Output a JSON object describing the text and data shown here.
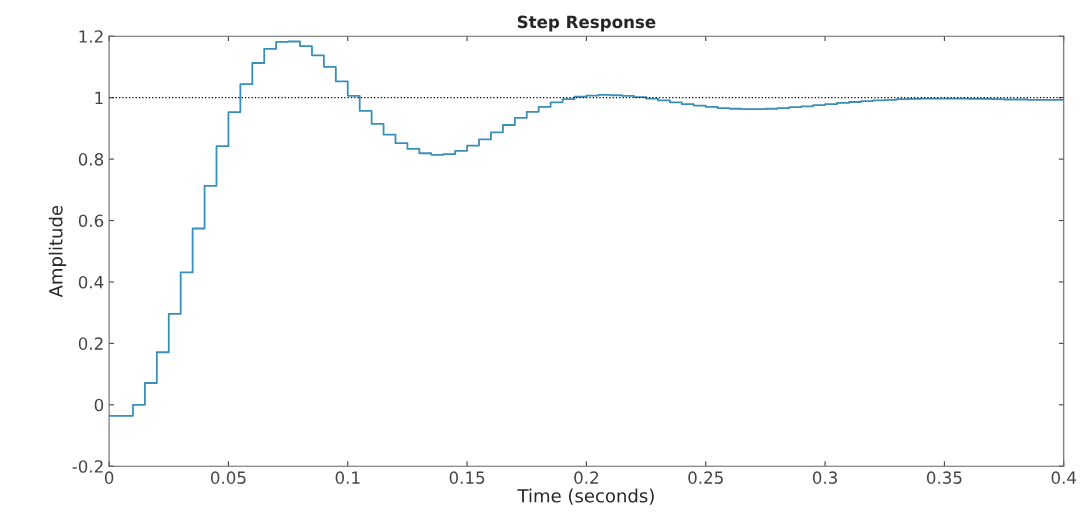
{
  "chart_data": {
    "type": "step",
    "title": "Step Response",
    "xlabel": "Time (seconds)",
    "ylabel": "Amplitude",
    "x": [
      0,
      0.01,
      0.015,
      0.02,
      0.025,
      0.03,
      0.035,
      0.04,
      0.045,
      0.05,
      0.055,
      0.06,
      0.065,
      0.07,
      0.075,
      0.08,
      0.085,
      0.09,
      0.095,
      0.1,
      0.105,
      0.11,
      0.115,
      0.12,
      0.125,
      0.13,
      0.135,
      0.14,
      0.145,
      0.15,
      0.155,
      0.16,
      0.165,
      0.17,
      0.175,
      0.18,
      0.185,
      0.19,
      0.195,
      0.2,
      0.205,
      0.21,
      0.215,
      0.22,
      0.225,
      0.23,
      0.235,
      0.24,
      0.245,
      0.25,
      0.255,
      0.26,
      0.265,
      0.27,
      0.275,
      0.28,
      0.285,
      0.29,
      0.295,
      0.3,
      0.305,
      0.31,
      0.315,
      0.32,
      0.325,
      0.33,
      0.335,
      0.34,
      0.345,
      0.35,
      0.355,
      0.36,
      0.365,
      0.37,
      0.375,
      0.38,
      0.385,
      0.39,
      0.395,
      0.4
    ],
    "series": [
      {
        "color": "#3a8fb7",
        "values": [
          -0.036,
          0.0,
          0.071,
          0.171,
          0.296,
          0.431,
          0.574,
          0.713,
          0.842,
          0.953,
          1.044,
          1.113,
          1.159,
          1.182,
          1.183,
          1.168,
          1.138,
          1.1,
          1.053,
          1.006,
          0.957,
          0.915,
          0.88,
          0.852,
          0.833,
          0.819,
          0.814,
          0.816,
          0.827,
          0.844,
          0.864,
          0.887,
          0.911,
          0.934,
          0.954,
          0.97,
          0.985,
          0.995,
          1.003,
          1.007,
          1.009,
          1.008,
          1.006,
          1.002,
          0.997,
          0.991,
          0.985,
          0.979,
          0.974,
          0.97,
          0.966,
          0.964,
          0.963,
          0.963,
          0.964,
          0.966,
          0.969,
          0.972,
          0.976,
          0.979,
          0.983,
          0.986,
          0.989,
          0.991,
          0.993,
          0.995,
          0.996,
          0.997,
          0.997,
          0.997,
          0.997,
          0.996,
          0.996,
          0.995,
          0.994,
          0.994,
          0.993,
          0.993,
          0.993,
          0.993
        ]
      }
    ],
    "ref_lines": [
      {
        "axis": "y",
        "value": 1,
        "color": "#000000",
        "line_style": "dotted"
      }
    ],
    "xlim": [
      0,
      0.4
    ],
    "ylim": [
      -0.2,
      1.2
    ],
    "xticks": [
      0,
      0.05,
      0.1,
      0.15,
      0.2,
      0.25,
      0.3,
      0.35,
      0.4
    ],
    "yticks": [
      -0.2,
      0,
      0.2,
      0.4,
      0.6,
      0.8,
      1,
      1.2
    ],
    "grid": false,
    "legend": false
  }
}
